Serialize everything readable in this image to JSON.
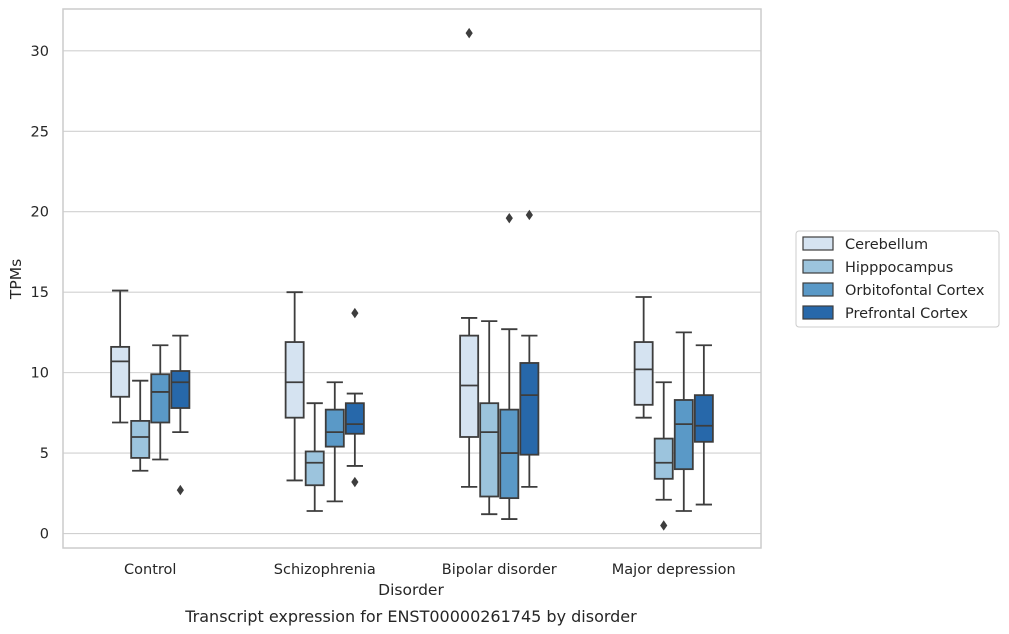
{
  "chart_data": {
    "type": "box",
    "title": "",
    "caption": "Transcript expression for ENST00000261745 by disorder",
    "xlabel": "Disorder",
    "ylabel": "TPMs",
    "ylim": [
      -0.9,
      32.6
    ],
    "yticks": [
      0,
      5,
      10,
      15,
      20,
      25,
      30
    ],
    "grid": "horizontal",
    "legend_position": "right",
    "categories": [
      "Control",
      "Schizophrenia",
      "Bipolar disorder",
      "Major depression"
    ],
    "series": [
      {
        "name": "Cerebellum",
        "color": "#d5e3f1",
        "boxes": [
          {
            "whislo": 6.9,
            "q1": 8.5,
            "med": 10.7,
            "q3": 11.6,
            "whishi": 15.1,
            "fliers": []
          },
          {
            "whislo": 3.3,
            "q1": 7.2,
            "med": 9.4,
            "q3": 11.9,
            "whishi": 15.0,
            "fliers": []
          },
          {
            "whislo": 2.9,
            "q1": 6.0,
            "med": 9.2,
            "q3": 12.3,
            "whishi": 13.4,
            "fliers": [
              31.1
            ]
          },
          {
            "whislo": 7.2,
            "q1": 8.0,
            "med": 10.2,
            "q3": 11.9,
            "whishi": 14.7,
            "fliers": []
          }
        ]
      },
      {
        "name": "Hipppocampus",
        "color": "#9cc4dd",
        "boxes": [
          {
            "whislo": 3.9,
            "q1": 4.7,
            "med": 6.0,
            "q3": 7.0,
            "whishi": 9.5,
            "fliers": []
          },
          {
            "whislo": 1.4,
            "q1": 3.0,
            "med": 4.4,
            "q3": 5.1,
            "whishi": 8.1,
            "fliers": []
          },
          {
            "whislo": 1.2,
            "q1": 2.3,
            "med": 6.3,
            "q3": 8.1,
            "whishi": 13.2,
            "fliers": []
          },
          {
            "whislo": 2.1,
            "q1": 3.4,
            "med": 4.4,
            "q3": 5.9,
            "whishi": 9.4,
            "fliers": [
              0.5
            ]
          }
        ]
      },
      {
        "name": "Orbitofontal Cortex",
        "color": "#5a99c7",
        "boxes": [
          {
            "whislo": 4.6,
            "q1": 6.9,
            "med": 8.8,
            "q3": 9.9,
            "whishi": 11.7,
            "fliers": []
          },
          {
            "whislo": 2.0,
            "q1": 5.4,
            "med": 6.3,
            "q3": 7.7,
            "whishi": 9.4,
            "fliers": []
          },
          {
            "whislo": 0.9,
            "q1": 2.2,
            "med": 5.0,
            "q3": 7.7,
            "whishi": 12.7,
            "fliers": [
              19.6
            ]
          },
          {
            "whislo": 1.4,
            "q1": 4.0,
            "med": 6.8,
            "q3": 8.3,
            "whishi": 12.5,
            "fliers": []
          }
        ]
      },
      {
        "name": "Prefrontal Cortex",
        "color": "#2768aa",
        "boxes": [
          {
            "whislo": 6.3,
            "q1": 7.8,
            "med": 9.4,
            "q3": 10.1,
            "whishi": 12.3,
            "fliers": [
              2.7
            ]
          },
          {
            "whislo": 4.2,
            "q1": 6.2,
            "med": 6.8,
            "q3": 8.1,
            "whishi": 8.7,
            "fliers": [
              13.7,
              3.2
            ]
          },
          {
            "whislo": 2.9,
            "q1": 4.9,
            "med": 8.6,
            "q3": 10.6,
            "whishi": 12.3,
            "fliers": [
              19.8
            ]
          },
          {
            "whislo": 1.8,
            "q1": 5.7,
            "med": 6.7,
            "q3": 8.6,
            "whishi": 11.7,
            "fliers": []
          }
        ]
      }
    ],
    "style": {
      "line_color": "#3d3d3d",
      "grid_color": "#d0d0d0",
      "frame_color": "#cccccc",
      "background": "#ffffff"
    }
  }
}
